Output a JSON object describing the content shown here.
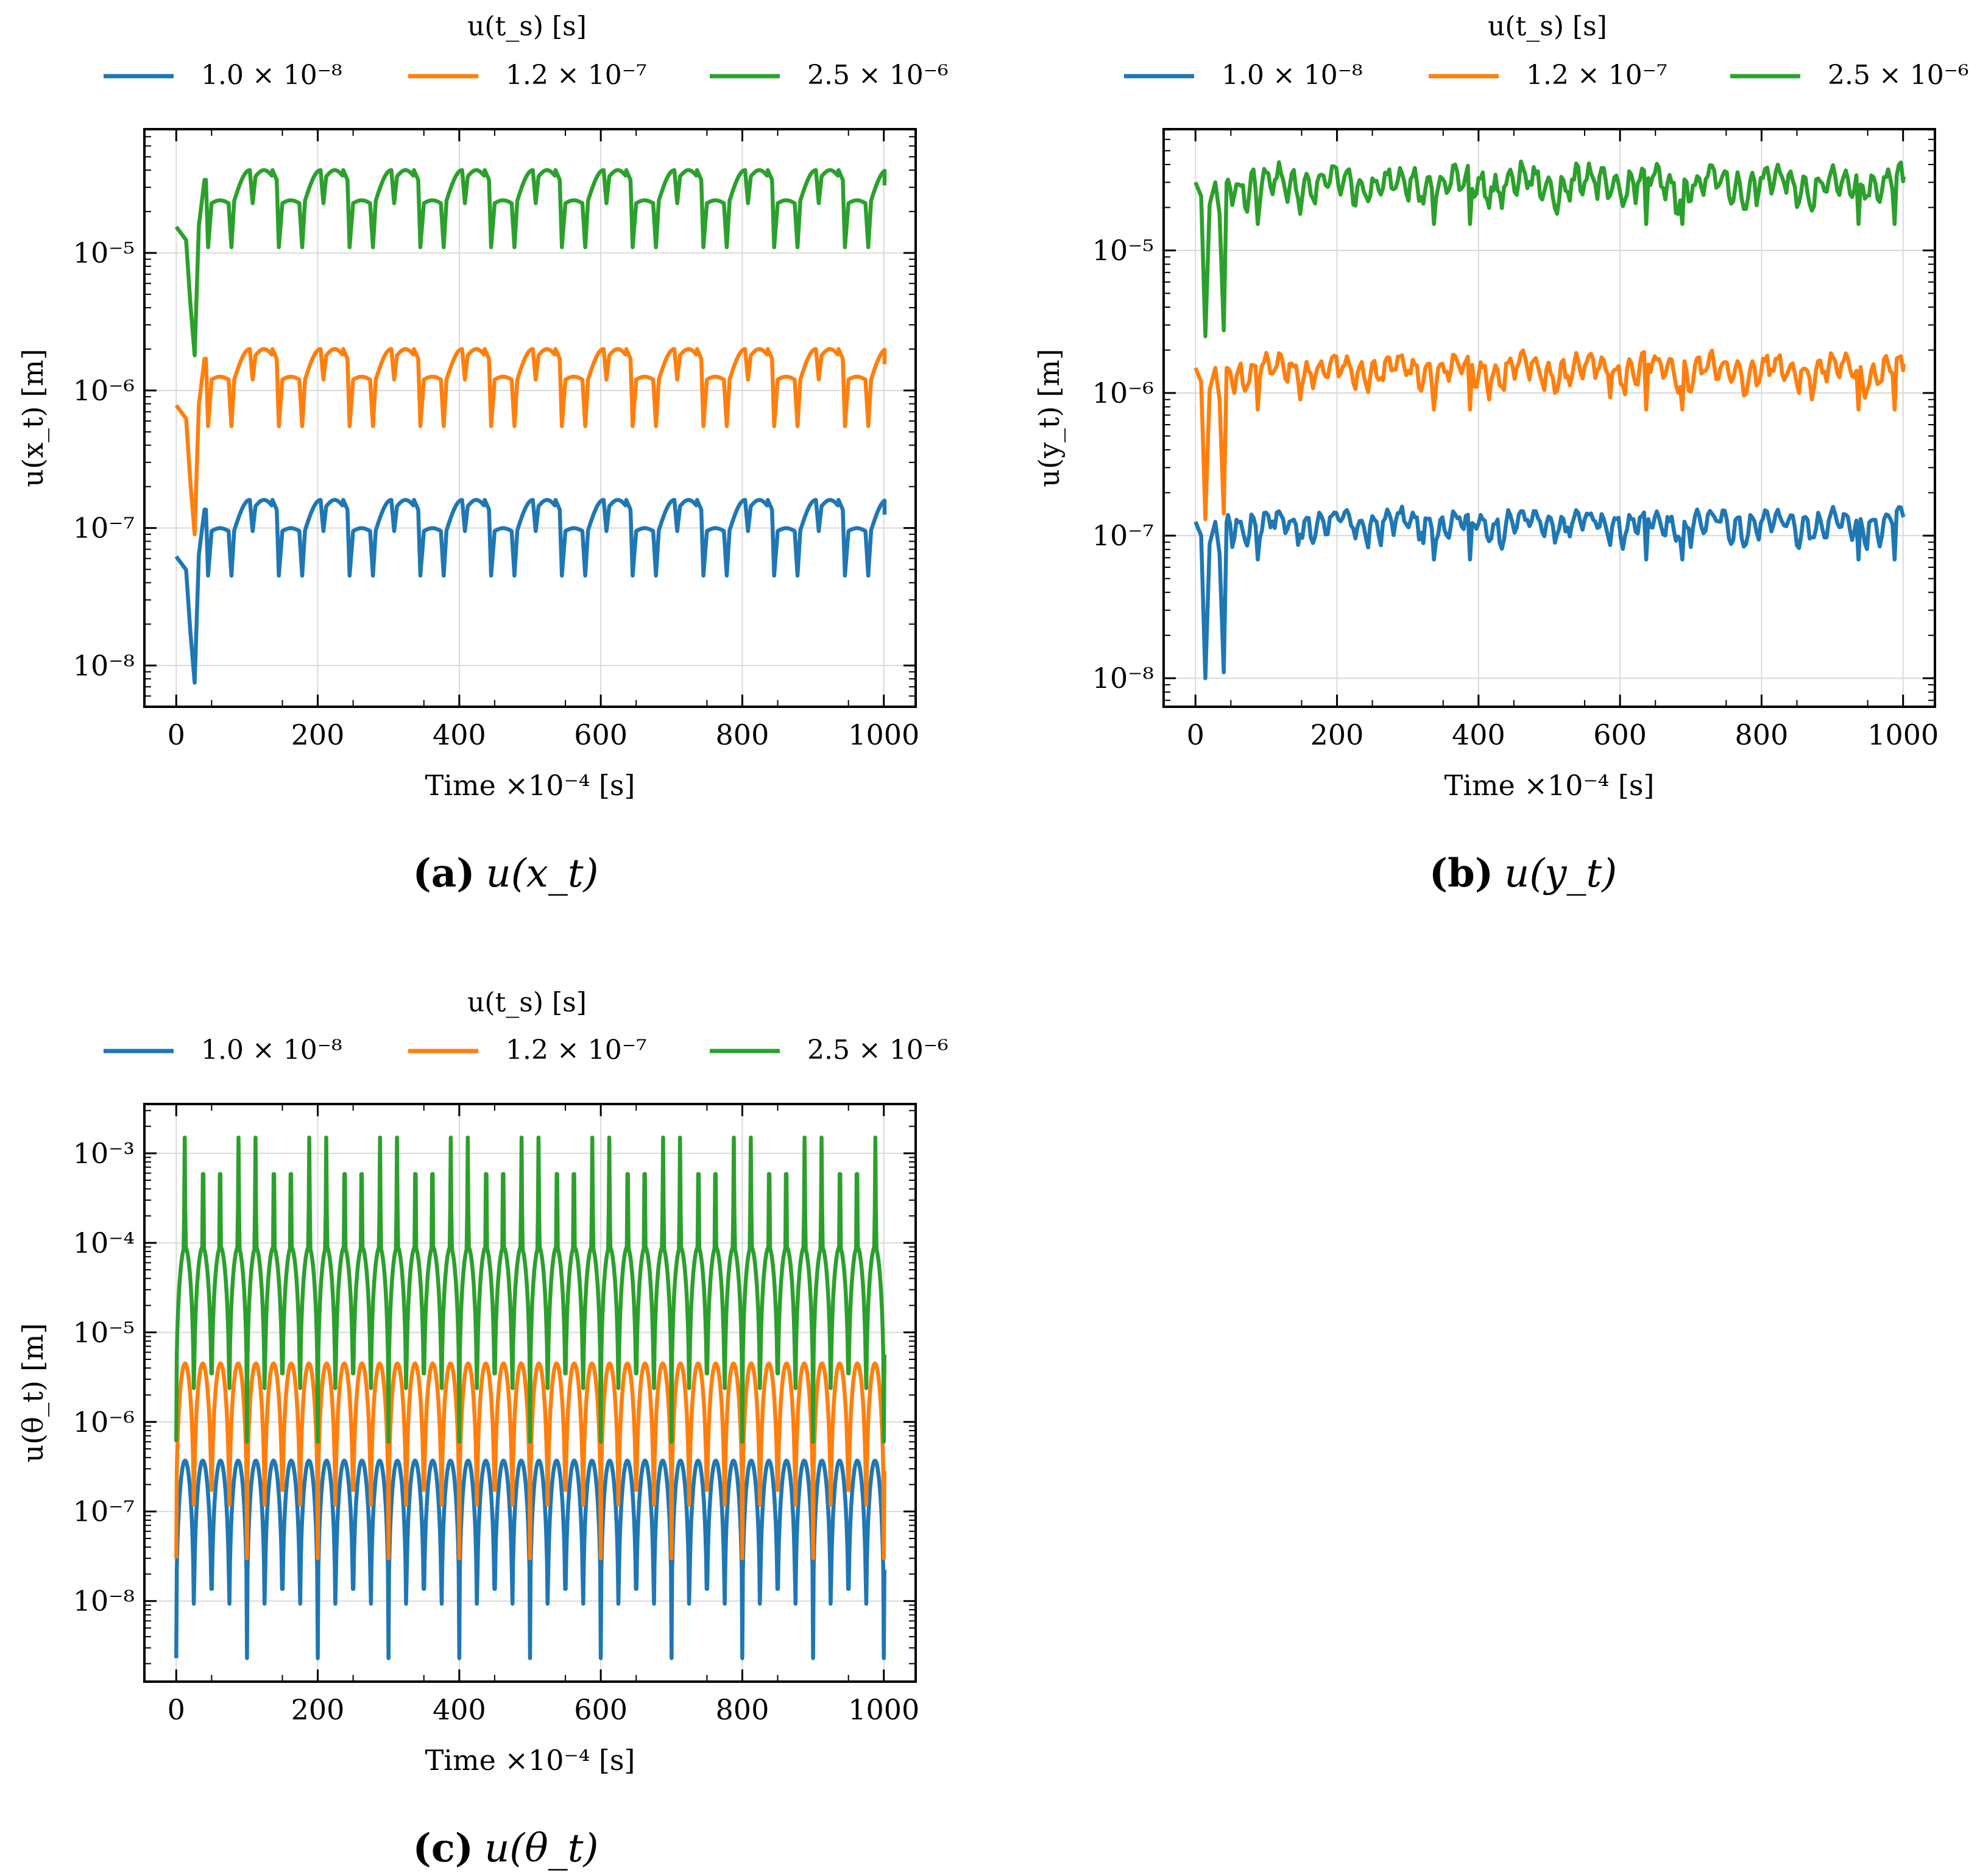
{
  "figure": {
    "legend_title": "u(t_s) [s]",
    "time_unit": "Time ×10⁻⁴ [s]",
    "series_colors": [
      "#1f77b4",
      "#ff7f0e",
      "#2ca02c"
    ]
  },
  "chart_data": [
    {
      "id": "a",
      "type": "line",
      "panel_label": "(a)",
      "caption": "u(x_t)",
      "title": "",
      "xlabel": "Time ×10⁻⁴ [s]",
      "ylabel": "u(x_t) [m]",
      "yscale": "log",
      "xlim": [
        -45,
        1045
      ],
      "ylim_exp": [
        -8.3,
        -4.1
      ],
      "xticks": [
        0,
        200,
        400,
        600,
        800,
        1000
      ],
      "xtick_labels": [
        "0",
        "200",
        "400",
        "600",
        "800",
        "1000"
      ],
      "yticks_exp": [
        -8,
        -7,
        -6,
        -5
      ],
      "ytick_labels": [
        "10⁻⁸",
        "10⁻⁷",
        "10⁻⁶",
        "10⁻⁵"
      ],
      "legend": {
        "title": "u(t_s) [s]",
        "position": "top-center",
        "entries": [
          "1.0 × 10⁻⁸",
          "1.2 × 10⁻⁷",
          "2.5 × 10⁻⁶"
        ]
      },
      "series": [
        {
          "name": "1.0 × 10⁻⁸",
          "color": "#1f77b4",
          "init_value": 6.2e-08,
          "dip_value": 7.5e-09,
          "peak_value": 1.6e-07,
          "mid_value": 9.5e-08,
          "min_value": 4.5e-08,
          "end_value": 1.25e-07
        },
        {
          "name": "1.2 × 10⁻⁷",
          "color": "#ff7f0e",
          "init_value": 7.8e-07,
          "dip_value": 9e-08,
          "peak_value": 2e-06,
          "mid_value": 1.2e-06,
          "min_value": 5.5e-07,
          "end_value": 1.55e-06
        },
        {
          "name": "2.5 × 10⁻⁶",
          "color": "#2ca02c",
          "init_value": 1.55e-05,
          "dip_value": 1.8e-06,
          "peak_value": 4e-05,
          "mid_value": 2.3e-05,
          "min_value": 1.1e-05,
          "end_value": 3.1e-05
        }
      ]
    },
    {
      "id": "b",
      "type": "line",
      "panel_label": "(b)",
      "caption": "u(y_t)",
      "title": "",
      "xlabel": "Time ×10⁻⁴ [s]",
      "ylabel": "u(y_t) [m]",
      "yscale": "log",
      "xlim": [
        -45,
        1045
      ],
      "ylim_exp": [
        -8.2,
        -4.15
      ],
      "xticks": [
        0,
        200,
        400,
        600,
        800,
        1000
      ],
      "xtick_labels": [
        "0",
        "200",
        "400",
        "600",
        "800",
        "1000"
      ],
      "yticks_exp": [
        -8,
        -7,
        -6,
        -5
      ],
      "ytick_labels": [
        "10⁻⁸",
        "10⁻⁷",
        "10⁻⁶",
        "10⁻⁵"
      ],
      "legend": {
        "title": "u(t_s) [s]",
        "position": "top-center",
        "entries": [
          "1.0 × 10⁻⁸",
          "1.2 × 10⁻⁷",
          "2.5 × 10⁻⁶"
        ]
      },
      "series": [
        {
          "name": "1.0 × 10⁻⁸",
          "color": "#1f77b4",
          "center_value": 1.25e-07,
          "hi_value": 1.6e-07,
          "lo_value": 8e-08,
          "dip_value": 1e-08,
          "end_value": 1.35e-07
        },
        {
          "name": "1.2 × 10⁻⁷",
          "color": "#ff7f0e",
          "center_value": 1.5e-06,
          "hi_value": 2e-06,
          "lo_value": 9e-07,
          "dip_value": 1.3e-07,
          "end_value": 1.6e-06
        },
        {
          "name": "2.5 × 10⁻⁶",
          "color": "#2ca02c",
          "center_value": 3e-05,
          "hi_value": 4.2e-05,
          "lo_value": 1.8e-05,
          "dip_value": 2.5e-06,
          "end_value": 3.3e-05
        }
      ]
    },
    {
      "id": "c",
      "type": "line",
      "panel_label": "(c)",
      "caption": "u(θ_t)",
      "title": "",
      "xlabel": "Time ×10⁻⁴ [s]",
      "ylabel": "u(θ_t) [m]",
      "yscale": "log",
      "xlim": [
        -45,
        1045
      ],
      "ylim_exp": [
        -8.9,
        -2.45
      ],
      "xticks": [
        0,
        200,
        400,
        600,
        800,
        1000
      ],
      "xtick_labels": [
        "0",
        "200",
        "400",
        "600",
        "800",
        "1000"
      ],
      "yticks_exp": [
        -8,
        -7,
        -6,
        -5,
        -4,
        -3
      ],
      "ytick_labels": [
        "10⁻⁸",
        "10⁻⁷",
        "10⁻⁶",
        "10⁻⁵",
        "10⁻⁴",
        "10⁻³"
      ],
      "legend": {
        "title": "u(t_s) [s]",
        "position": "top-center",
        "entries": [
          "1.0 × 10⁻⁸",
          "1.2 × 10⁻⁷",
          "2.5 × 10⁻⁶"
        ]
      },
      "series": [
        {
          "name": "1.0 × 10⁻⁸",
          "color": "#1f77b4",
          "min_value": 2.3e-09,
          "peak_value": 3.7e-07,
          "period": 50
        },
        {
          "name": "1.2 × 10⁻⁷",
          "color": "#ff7f0e",
          "min_value": 3e-08,
          "peak_value": 4.5e-06,
          "period": 50
        },
        {
          "name": "2.5 × 10⁻⁶",
          "color": "#2ca02c",
          "min_value": 6e-07,
          "peak_value": 9e-05,
          "spike_value": 0.0015,
          "period": 50
        }
      ]
    }
  ]
}
